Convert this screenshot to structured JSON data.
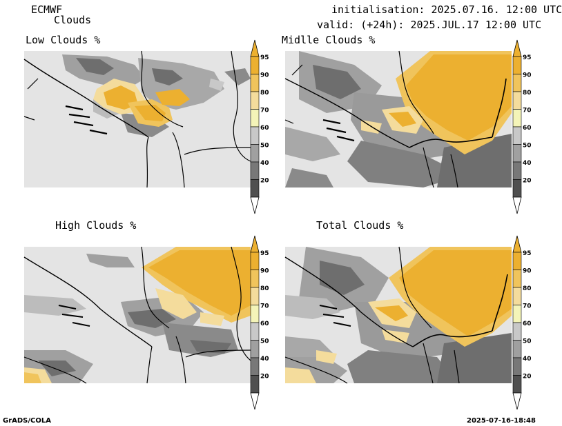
{
  "header": {
    "model": "ECMWF",
    "product": "Clouds",
    "init_line": "initialisation: 2025.07.16. 12:00 UTC",
    "valid_line": "valid: (+24h): 2025.JUL.17 12:00 UTC"
  },
  "panels": [
    {
      "title": "Low Clouds %"
    },
    {
      "title": "Midlle Clouds %"
    },
    {
      "title": "High Clouds %"
    },
    {
      "title": "Total Clouds %"
    }
  ],
  "colorbar": {
    "levels": [
      "20",
      "40",
      "50",
      "60",
      "70",
      "80",
      "90",
      "95"
    ],
    "colors": [
      "#505050",
      "#787878",
      "#a0a0a0",
      "#c8c8c8",
      "#f4f4b8",
      "#f4dc9c",
      "#f0c45c",
      "#ecb030"
    ],
    "under_color": "#ffffff",
    "over_color": "#ecb030"
  },
  "footer": {
    "left": "GrADS/COLA",
    "right": "2025-07-16-18:48"
  }
}
